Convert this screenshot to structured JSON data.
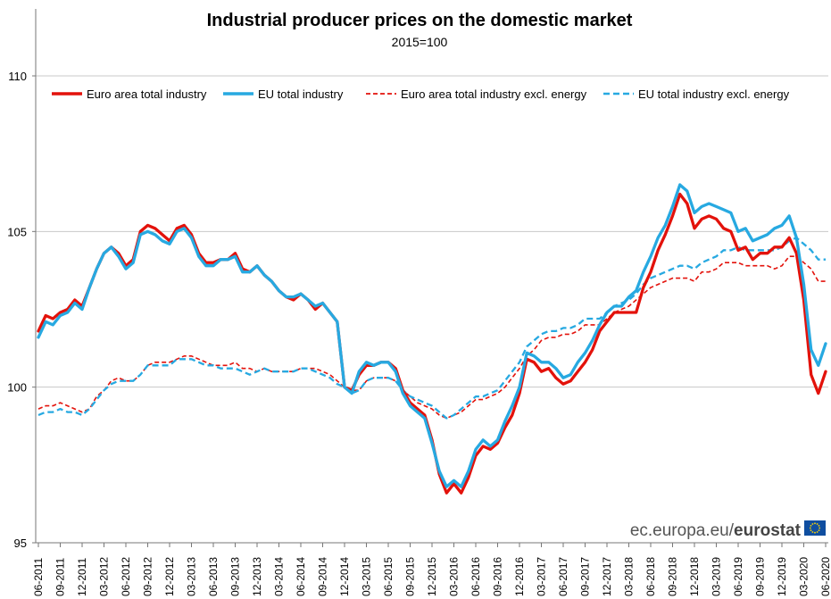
{
  "chart_data": {
    "type": "line",
    "title": "Industrial producer prices on the domestic market",
    "subtitle": "2015=100",
    "xlabel": "",
    "ylabel": "",
    "ylim": [
      95,
      110
    ],
    "yticks": [
      "95",
      "100",
      "105",
      "110"
    ],
    "grid": true,
    "legend_placement": "top",
    "x": [
      "06-2011",
      "07-2011",
      "08-2011",
      "09-2011",
      "10-2011",
      "11-2011",
      "12-2011",
      "01-2012",
      "02-2012",
      "03-2012",
      "04-2012",
      "05-2012",
      "06-2012",
      "07-2012",
      "08-2012",
      "09-2012",
      "10-2012",
      "11-2012",
      "12-2012",
      "01-2013",
      "02-2013",
      "03-2013",
      "04-2013",
      "05-2013",
      "06-2013",
      "07-2013",
      "08-2013",
      "09-2013",
      "10-2013",
      "11-2013",
      "12-2013",
      "01-2014",
      "02-2014",
      "03-2014",
      "04-2014",
      "05-2014",
      "06-2014",
      "07-2014",
      "08-2014",
      "09-2014",
      "10-2014",
      "11-2014",
      "12-2014",
      "01-2015",
      "02-2015",
      "03-2015",
      "04-2015",
      "05-2015",
      "06-2015",
      "07-2015",
      "08-2015",
      "09-2015",
      "10-2015",
      "11-2015",
      "12-2015",
      "01-2016",
      "02-2016",
      "03-2016",
      "04-2016",
      "05-2016",
      "06-2016",
      "07-2016",
      "08-2016",
      "09-2016",
      "10-2016",
      "11-2016",
      "12-2016",
      "01-2017",
      "02-2017",
      "03-2017",
      "04-2017",
      "05-2017",
      "06-2017",
      "07-2017",
      "08-2017",
      "09-2017",
      "10-2017",
      "11-2017",
      "12-2017",
      "01-2018",
      "02-2018",
      "03-2018",
      "04-2018",
      "05-2018",
      "06-2018",
      "07-2018",
      "08-2018",
      "09-2018",
      "10-2018",
      "11-2018",
      "12-2018",
      "01-2019",
      "02-2019",
      "03-2019",
      "04-2019",
      "05-2019",
      "06-2019",
      "07-2019",
      "08-2019",
      "09-2019",
      "10-2019",
      "11-2019",
      "12-2019",
      "01-2020",
      "02-2020",
      "03-2020",
      "04-2020",
      "05-2020",
      "06-2020"
    ],
    "xtick_labels": [
      "06-2011",
      "09-2011",
      "12-2011",
      "03-2012",
      "06-2012",
      "09-2012",
      "12-2012",
      "03-2013",
      "06-2013",
      "09-2013",
      "12-2013",
      "03-2014",
      "06-2014",
      "09-2014",
      "12-2014",
      "03-2015",
      "06-2015",
      "09-2015",
      "12-2015",
      "03-2016",
      "06-2016",
      "09-2016",
      "12-2016",
      "03-2017",
      "06-2017",
      "09-2017",
      "12-2017",
      "03-2018",
      "06-2018",
      "09-2018",
      "12-2018",
      "03-2019",
      "06-2019",
      "09-2019",
      "12-2019",
      "03-2020",
      "06-2020"
    ],
    "series": [
      {
        "name": "Euro area total industry",
        "color": "#e3120b",
        "style": "solid",
        "values": [
          101.8,
          102.3,
          102.2,
          102.4,
          102.5,
          102.8,
          102.6,
          103.2,
          103.8,
          104.3,
          104.5,
          104.3,
          103.9,
          104.1,
          105.0,
          105.2,
          105.1,
          104.9,
          104.7,
          105.1,
          105.2,
          104.9,
          104.3,
          104.0,
          104.0,
          104.1,
          104.1,
          104.3,
          103.8,
          103.7,
          103.9,
          103.6,
          103.4,
          103.1,
          102.9,
          102.8,
          103.0,
          102.8,
          102.5,
          102.7,
          102.4,
          102.1,
          100.0,
          99.9,
          100.4,
          100.7,
          100.7,
          100.8,
          100.8,
          100.6,
          99.9,
          99.5,
          99.3,
          99.1,
          98.3,
          97.2,
          96.6,
          96.9,
          96.6,
          97.1,
          97.8,
          98.1,
          98.0,
          98.2,
          98.7,
          99.1,
          99.8,
          100.9,
          100.8,
          100.5,
          100.6,
          100.3,
          100.1,
          100.2,
          100.5,
          100.8,
          101.2,
          101.8,
          102.1,
          102.4,
          102.4,
          102.4,
          102.4,
          103.2,
          103.7,
          104.4,
          104.9,
          105.5,
          106.2,
          105.9,
          105.1,
          105.4,
          105.5,
          105.4,
          105.1,
          105.0,
          104.4,
          104.5,
          104.1,
          104.3,
          104.3,
          104.5,
          104.5,
          104.8,
          104.3,
          102.8,
          100.4,
          99.8,
          100.5
        ]
      },
      {
        "name": "EU total industry",
        "color": "#27a9e1",
        "style": "solid",
        "values": [
          101.6,
          102.1,
          102.0,
          102.3,
          102.4,
          102.7,
          102.5,
          103.2,
          103.8,
          104.3,
          104.5,
          104.2,
          103.8,
          104.0,
          104.9,
          105.0,
          104.9,
          104.7,
          104.6,
          105.0,
          105.1,
          104.8,
          104.2,
          103.9,
          103.9,
          104.1,
          104.1,
          104.2,
          103.7,
          103.7,
          103.9,
          103.6,
          103.4,
          103.1,
          102.9,
          102.9,
          103.0,
          102.8,
          102.6,
          102.7,
          102.4,
          102.1,
          100.0,
          99.8,
          100.5,
          100.8,
          100.7,
          100.8,
          100.8,
          100.5,
          99.8,
          99.4,
          99.2,
          99.0,
          98.2,
          97.3,
          96.8,
          97.0,
          96.8,
          97.3,
          98.0,
          98.3,
          98.1,
          98.3,
          98.9,
          99.4,
          100.0,
          101.1,
          101.0,
          100.8,
          100.8,
          100.6,
          100.3,
          100.4,
          100.8,
          101.1,
          101.5,
          102.0,
          102.4,
          102.6,
          102.6,
          102.9,
          103.1,
          103.7,
          104.2,
          104.8,
          105.2,
          105.8,
          106.5,
          106.3,
          105.6,
          105.8,
          105.9,
          105.8,
          105.7,
          105.6,
          105.0,
          105.1,
          104.7,
          104.8,
          104.9,
          105.1,
          105.2,
          105.5,
          104.8,
          103.3,
          101.2,
          100.7,
          101.4
        ]
      },
      {
        "name": "Euro area total industry excl. energy",
        "color": "#e3120b",
        "style": "dashed",
        "values": [
          99.3,
          99.4,
          99.4,
          99.5,
          99.4,
          99.3,
          99.2,
          99.3,
          99.7,
          99.9,
          100.2,
          100.3,
          100.2,
          100.2,
          100.4,
          100.7,
          100.8,
          100.8,
          100.8,
          100.9,
          101.0,
          101.0,
          100.9,
          100.8,
          100.7,
          100.7,
          100.7,
          100.8,
          100.6,
          100.6,
          100.5,
          100.6,
          100.5,
          100.5,
          100.5,
          100.5,
          100.6,
          100.6,
          100.6,
          100.5,
          100.4,
          100.2,
          100.0,
          99.9,
          99.9,
          100.2,
          100.3,
          100.3,
          100.3,
          100.2,
          99.9,
          99.7,
          99.5,
          99.4,
          99.3,
          99.1,
          99.0,
          99.1,
          99.2,
          99.4,
          99.6,
          99.6,
          99.7,
          99.8,
          100.0,
          100.3,
          100.6,
          101.0,
          101.2,
          101.5,
          101.6,
          101.6,
          101.7,
          101.7,
          101.8,
          102.0,
          102.0,
          102.0,
          102.2,
          102.4,
          102.5,
          102.6,
          102.8,
          103.0,
          103.2,
          103.3,
          103.4,
          103.5,
          103.5,
          103.5,
          103.4,
          103.7,
          103.7,
          103.8,
          104.0,
          104.0,
          104.0,
          103.9,
          103.9,
          103.9,
          103.9,
          103.8,
          103.9,
          104.2,
          104.2,
          104.0,
          103.8,
          103.4,
          103.4
        ]
      },
      {
        "name": "EU total industry excl. energy",
        "color": "#27a9e1",
        "style": "dashed",
        "values": [
          99.1,
          99.2,
          99.2,
          99.3,
          99.2,
          99.2,
          99.1,
          99.3,
          99.6,
          99.9,
          100.1,
          100.2,
          100.2,
          100.2,
          100.4,
          100.7,
          100.7,
          100.7,
          100.7,
          100.9,
          100.9,
          100.9,
          100.8,
          100.7,
          100.7,
          100.6,
          100.6,
          100.6,
          100.5,
          100.4,
          100.5,
          100.6,
          100.5,
          100.5,
          100.5,
          100.5,
          100.6,
          100.6,
          100.5,
          100.4,
          100.3,
          100.1,
          100.0,
          99.8,
          99.9,
          100.2,
          100.3,
          100.3,
          100.3,
          100.2,
          99.9,
          99.7,
          99.6,
          99.5,
          99.4,
          99.2,
          99.0,
          99.1,
          99.3,
          99.5,
          99.7,
          99.7,
          99.8,
          99.9,
          100.2,
          100.5,
          100.8,
          101.3,
          101.5,
          101.7,
          101.8,
          101.8,
          101.9,
          101.9,
          102.0,
          102.2,
          102.2,
          102.2,
          102.4,
          102.6,
          102.7,
          102.8,
          103.0,
          103.3,
          103.5,
          103.6,
          103.7,
          103.8,
          103.9,
          103.9,
          103.8,
          104.0,
          104.1,
          104.2,
          104.4,
          104.4,
          104.5,
          104.4,
          104.4,
          104.4,
          104.4,
          104.4,
          104.5,
          104.7,
          104.8,
          104.6,
          104.4,
          104.1,
          104.1
        ]
      }
    ],
    "watermark": {
      "light": "ec.europa.eu/",
      "bold": "eurostat"
    }
  }
}
